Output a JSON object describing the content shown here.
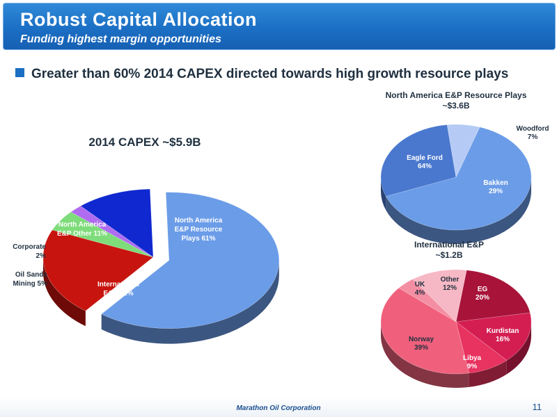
{
  "header": {
    "title": "Robust Capital Allocation",
    "subtitle": "Funding highest margin opportunities"
  },
  "bullet": "Greater than 60% 2014 CAPEX directed towards high growth resource plays",
  "footer": {
    "company": "Marathon Oil Corporation",
    "page": "11"
  },
  "chart_data": [
    {
      "type": "pie",
      "title": "2014 CAPEX ~$5.9B",
      "slices": [
        {
          "label": "North America E&P Resource Plays",
          "value": 61,
          "display": [
            "North America",
            "E&P Resource",
            "Plays 61%"
          ],
          "color": "#6b9ce8"
        },
        {
          "label": "International E&P",
          "value": 21,
          "display": [
            "International",
            "E&P 21%"
          ],
          "color": "#c8140f"
        },
        {
          "label": "Oil Sands Mining",
          "value": 5,
          "display": [
            "Oil Sands",
            "Mining 5%"
          ],
          "color": "#7edc7a"
        },
        {
          "label": "Corporate",
          "value": 2,
          "display": [
            "Corporate",
            "2%"
          ],
          "color": "#b06cf0"
        },
        {
          "label": "North America E&P Other",
          "value": 11,
          "display": [
            "North America",
            "E&P Other 11%"
          ],
          "color": "#1028d0"
        }
      ]
    },
    {
      "type": "pie",
      "title": "North America E&P Resource Plays",
      "subtitle": "~$3.6B",
      "slices": [
        {
          "label": "Eagle Ford",
          "value": 64,
          "display": [
            "Eagle Ford",
            "64%"
          ],
          "color": "#6b9ce8"
        },
        {
          "label": "Bakken",
          "value": 29,
          "display": [
            "Bakken",
            "29%"
          ],
          "color": "#4a78cf"
        },
        {
          "label": "Woodford",
          "value": 7,
          "display": [
            "Woodford",
            "7%"
          ],
          "color": "#b5cbf5"
        }
      ]
    },
    {
      "type": "pie",
      "title": "International E&P",
      "subtitle": "~$1.2B",
      "slices": [
        {
          "label": "EG",
          "value": 20,
          "display": [
            "EG",
            "20%"
          ],
          "color": "#a8133a"
        },
        {
          "label": "Kurdistan",
          "value": 16,
          "display": [
            "Kurdistan",
            "16%"
          ],
          "color": "#d41e52"
        },
        {
          "label": "Libya",
          "value": 9,
          "display": [
            "Libya",
            "9%"
          ],
          "color": "#e8325f"
        },
        {
          "label": "Norway",
          "value": 39,
          "display": [
            "Norway",
            "39%"
          ],
          "color": "#f0607c"
        },
        {
          "label": "UK",
          "value": 4,
          "display": [
            "UK",
            "4%"
          ],
          "color": "#f48ea3"
        },
        {
          "label": "Other",
          "value": 12,
          "display": [
            "Other",
            "12%"
          ],
          "color": "#f6b8c4"
        }
      ]
    }
  ]
}
